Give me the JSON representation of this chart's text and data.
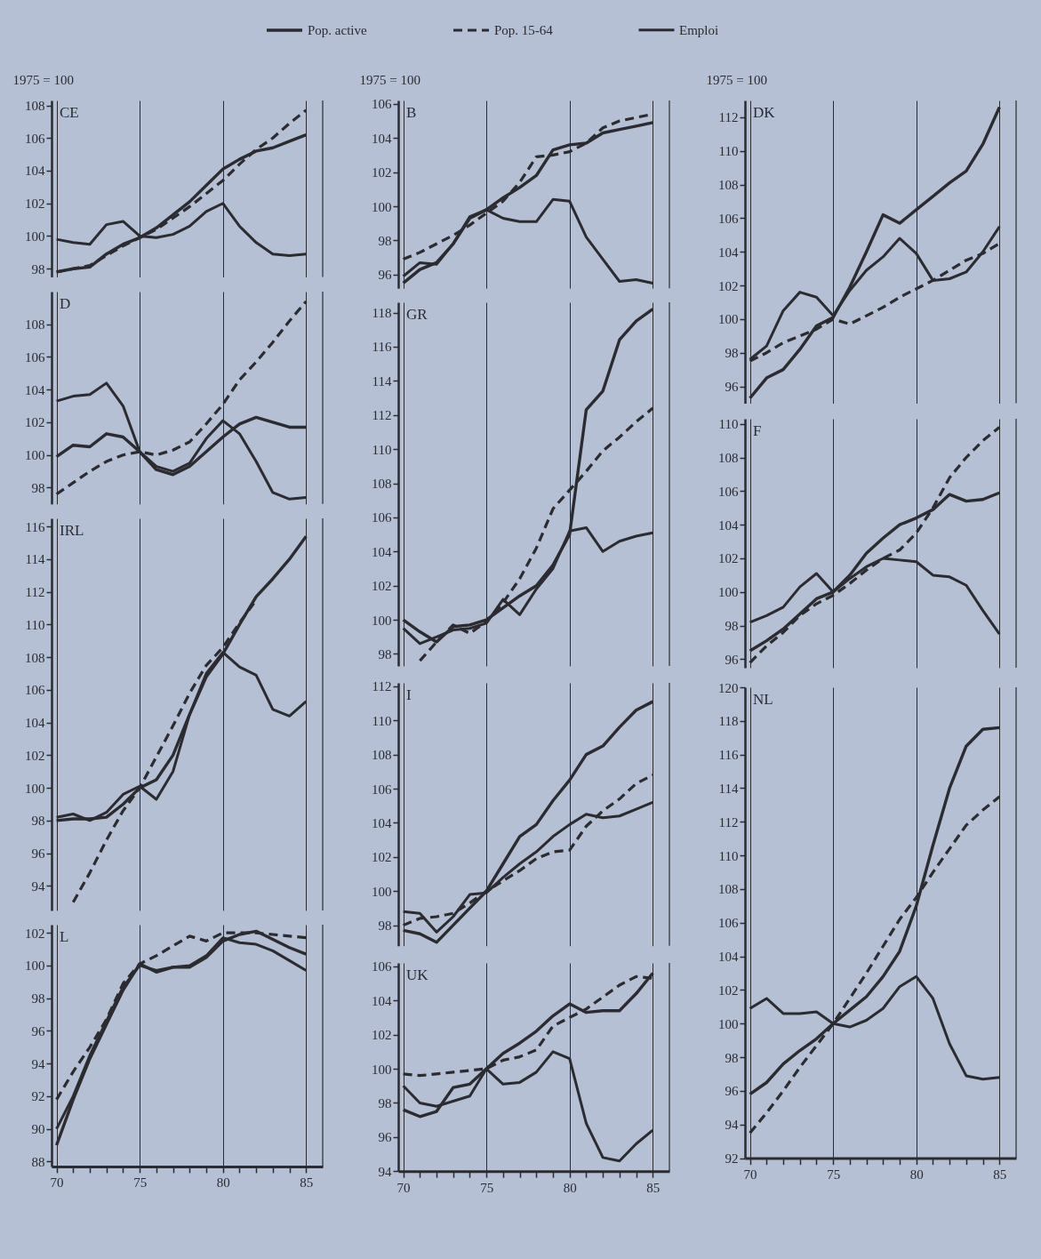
{
  "chart_data": [
    {
      "type": "line",
      "title": "CE",
      "ylabel": "1975 = 100",
      "x": [
        70,
        71,
        72,
        73,
        74,
        75,
        76,
        77,
        78,
        79,
        80,
        81,
        82,
        83,
        84,
        85
      ],
      "xlim": [
        69.7,
        86
      ],
      "xticks": [
        70,
        75,
        80,
        85
      ],
      "ylim": [
        97.5,
        108.3
      ],
      "yticks": [
        98,
        100,
        102,
        104,
        106,
        108
      ],
      "grid": "x",
      "tick_labels": "y",
      "legend": "top",
      "series": [
        {
          "name": "Pop. active",
          "color": "#2b2b30",
          "line_style": "solid",
          "values": [
            97.8,
            98.0,
            98.1,
            98.9,
            99.5,
            99.9,
            100.5,
            101.3,
            102.1,
            103.1,
            104.1,
            104.7,
            105.2,
            105.4,
            105.8,
            106.2
          ]
        },
        {
          "name": "Pop. 15-64",
          "color": "#2b2b30",
          "line_style": "dashed",
          "values": [
            97.8,
            98.0,
            98.2,
            98.8,
            99.4,
            99.9,
            100.4,
            101.1,
            101.8,
            102.6,
            103.4,
            104.4,
            105.3,
            106.0,
            106.9,
            107.7
          ]
        },
        {
          "name": "Emploi",
          "color": "#2b2b30",
          "line_style": "solid",
          "values": [
            99.8,
            99.6,
            99.5,
            100.7,
            100.9,
            100.0,
            99.9,
            100.1,
            100.6,
            101.5,
            102.0,
            100.6,
            99.6,
            98.9,
            98.8,
            98.9
          ]
        }
      ]
    },
    {
      "type": "line",
      "title": "D",
      "x": [
        70,
        71,
        72,
        73,
        74,
        75,
        76,
        77,
        78,
        79,
        80,
        81,
        82,
        83,
        84,
        85
      ],
      "xlim": [
        69.7,
        86
      ],
      "xticks": [
        70,
        75,
        80,
        85
      ],
      "ylim": [
        97,
        110
      ],
      "yticks": [
        98,
        100,
        102,
        104,
        106,
        108
      ],
      "grid": "x",
      "tick_labels": "y",
      "series": [
        {
          "name": "Pop. active",
          "color": "#2b2b30",
          "line_style": "solid",
          "values": [
            99.9,
            100.6,
            100.5,
            101.3,
            101.1,
            100.2,
            99.1,
            98.8,
            99.3,
            100.2,
            101.1,
            101.9,
            102.3,
            102.0,
            101.7,
            101.7
          ]
        },
        {
          "name": "Pop. 15-64",
          "color": "#2b2b30",
          "line_style": "dashed",
          "values": [
            97.6,
            98.3,
            99.0,
            99.6,
            100.0,
            100.2,
            100.0,
            100.3,
            100.8,
            101.9,
            103.1,
            104.6,
            105.7,
            106.9,
            108.2,
            109.4
          ]
        },
        {
          "name": "Emploi",
          "color": "#2b2b30",
          "line_style": "solid",
          "values": [
            103.3,
            103.6,
            103.7,
            104.4,
            103.0,
            100.2,
            99.3,
            99.0,
            99.5,
            101.0,
            102.1,
            101.3,
            99.6,
            97.7,
            97.3,
            97.4
          ]
        }
      ]
    },
    {
      "type": "line",
      "title": "IRL",
      "x": [
        70,
        71,
        72,
        73,
        74,
        75,
        76,
        77,
        78,
        79,
        80,
        81,
        82,
        83,
        84,
        85
      ],
      "xlim": [
        69.7,
        86
      ],
      "xticks": [
        70,
        75,
        80,
        85
      ],
      "ylim": [
        92.5,
        116.5
      ],
      "yticks": [
        94,
        96,
        98,
        100,
        102,
        104,
        106,
        108,
        110,
        112,
        114,
        116
      ],
      "grid": "x",
      "tick_labels": "y",
      "series": [
        {
          "name": "Pop. active",
          "color": "#2b2b30",
          "line_style": "solid",
          "values": [
            98.0,
            98.1,
            98.1,
            98.2,
            99.0,
            100.0,
            100.5,
            102.0,
            104.5,
            106.8,
            108.2,
            110.0,
            111.7,
            112.8,
            114.0,
            115.4
          ]
        },
        {
          "name": "Pop. 15-64",
          "color": "#2b2b30",
          "line_style": "dashed",
          "values": [
            null,
            93.0,
            94.8,
            96.8,
            98.6,
            100.0,
            101.9,
            103.8,
            105.8,
            107.5,
            108.6,
            110.1,
            111.5,
            null,
            null,
            null
          ]
        },
        {
          "name": "Emploi",
          "color": "#2b2b30",
          "line_style": "solid",
          "values": [
            98.2,
            98.4,
            98.0,
            98.5,
            99.6,
            100.1,
            99.3,
            101.0,
            104.5,
            107.0,
            108.3,
            107.4,
            106.9,
            104.8,
            104.4,
            105.3
          ]
        }
      ]
    },
    {
      "type": "line",
      "title": "L",
      "x": [
        70,
        71,
        72,
        73,
        74,
        75,
        76,
        77,
        78,
        79,
        80,
        81,
        82,
        83,
        84,
        85
      ],
      "xlim": [
        69.7,
        86
      ],
      "xticks": [
        70,
        {
          "value": 71,
          "label": null
        },
        {
          "value": 72,
          "label": null
        },
        {
          "value": 73,
          "label": null
        },
        {
          "value": 74,
          "label": null
        },
        75,
        {
          "value": 76,
          "label": null
        },
        {
          "value": 77,
          "label": null
        },
        {
          "value": 78,
          "label": null
        },
        {
          "value": 79,
          "label": null
        },
        80,
        {
          "value": 81,
          "label": null
        },
        {
          "value": 82,
          "label": null
        },
        {
          "value": 83,
          "label": null
        },
        {
          "value": 84,
          "label": null
        },
        85
      ],
      "ylim": [
        87.7,
        102.5
      ],
      "yticks": [
        88,
        90,
        92,
        94,
        96,
        98,
        100,
        102
      ],
      "grid": "x",
      "series": [
        {
          "name": "Pop. active",
          "color": "#2b2b30",
          "line_style": "solid",
          "values": [
            89.0,
            91.8,
            94.3,
            96.4,
            98.5,
            100.1,
            99.6,
            99.9,
            99.9,
            100.5,
            101.5,
            101.9,
            102.1,
            101.6,
            101.1,
            100.7
          ]
        },
        {
          "name": "Pop. 15-64",
          "color": "#2b2b30",
          "line_style": "dashed",
          "values": [
            91.8,
            93.5,
            95.0,
            96.7,
            98.9,
            100.1,
            100.6,
            101.2,
            101.8,
            101.5,
            102.0,
            102.0,
            102.0,
            101.9,
            101.8,
            101.7
          ]
        },
        {
          "name": "Emploi",
          "color": "#2b2b30",
          "line_style": "solid",
          "values": [
            90.0,
            92.0,
            94.5,
            96.6,
            98.7,
            100.0,
            99.7,
            99.9,
            100.0,
            100.6,
            101.7,
            101.4,
            101.3,
            100.9,
            100.3,
            99.7
          ]
        }
      ]
    },
    {
      "type": "line",
      "title": "B",
      "ylabel": "1975 = 100",
      "x": [
        70,
        71,
        72,
        73,
        74,
        75,
        76,
        77,
        78,
        79,
        80,
        81,
        82,
        83,
        84,
        85
      ],
      "xlim": [
        69.7,
        86
      ],
      "xticks": [
        70,
        75,
        80,
        85
      ],
      "ylim": [
        95.2,
        106.2
      ],
      "yticks": [
        96,
        98,
        100,
        102,
        104,
        106
      ],
      "grid": "x",
      "tick_labels": "y",
      "series": [
        {
          "name": "Pop. active",
          "color": "#2b2b30",
          "line_style": "solid",
          "values": [
            95.5,
            96.3,
            96.7,
            97.8,
            99.3,
            99.8,
            100.5,
            101.1,
            101.8,
            103.3,
            103.6,
            103.7,
            104.3,
            104.5,
            104.7,
            104.9
          ]
        },
        {
          "name": "Pop. 15-64",
          "color": "#2b2b30",
          "line_style": "dashed",
          "values": [
            96.9,
            97.3,
            97.8,
            98.3,
            98.9,
            99.6,
            100.3,
            101.4,
            102.9,
            103.0,
            103.2,
            103.7,
            104.6,
            105.0,
            105.2,
            105.4
          ]
        },
        {
          "name": "Emploi",
          "color": "#2b2b30",
          "line_style": "solid",
          "values": [
            95.9,
            96.7,
            96.6,
            97.8,
            99.4,
            99.8,
            99.3,
            99.1,
            99.1,
            100.4,
            100.3,
            98.2,
            96.9,
            95.6,
            95.7,
            95.5
          ]
        }
      ]
    },
    {
      "type": "line",
      "title": "GR",
      "x": [
        70,
        71,
        72,
        73,
        74,
        75,
        76,
        77,
        78,
        79,
        80,
        81,
        82,
        83,
        84,
        85
      ],
      "xlim": [
        69.7,
        86
      ],
      "xticks": [
        70,
        75,
        80,
        85
      ],
      "ylim": [
        97.3,
        118.6
      ],
      "yticks": [
        98,
        100,
        102,
        104,
        106,
        108,
        110,
        112,
        114,
        116,
        118
      ],
      "grid": "x",
      "tick_labels": "y",
      "series": [
        {
          "name": "Pop. active",
          "color": "#2b2b30",
          "line_style": "solid",
          "values": [
            100.0,
            99.3,
            98.7,
            99.6,
            99.7,
            100.0,
            100.7,
            101.4,
            102.0,
            103.2,
            105.0,
            112.3,
            113.4,
            116.4,
            117.5,
            118.2
          ]
        },
        {
          "name": "Pop. 15-64",
          "color": "#2b2b30",
          "line_style": "dashed",
          "values": [
            null,
            97.6,
            98.7,
            99.7,
            99.2,
            99.9,
            101.0,
            102.4,
            104.2,
            106.5,
            107.6,
            108.7,
            109.9,
            110.7,
            111.6,
            112.4
          ]
        },
        {
          "name": "Emploi",
          "color": "#2b2b30",
          "line_style": "solid",
          "values": [
            99.5,
            98.6,
            99.0,
            99.4,
            99.5,
            99.8,
            101.2,
            100.3,
            101.8,
            103.0,
            105.2,
            105.4,
            104.0,
            104.6,
            104.9,
            105.1
          ]
        }
      ]
    },
    {
      "type": "line",
      "title": "I",
      "x": [
        70,
        71,
        72,
        73,
        74,
        75,
        76,
        77,
        78,
        79,
        80,
        81,
        82,
        83,
        84,
        85
      ],
      "xlim": [
        69.7,
        86
      ],
      "xticks": [
        70,
        75,
        80,
        85
      ],
      "ylim": [
        96.8,
        112.2
      ],
      "yticks": [
        98,
        100,
        102,
        104,
        106,
        108,
        110,
        112
      ],
      "grid": "x",
      "tick_labels": "y",
      "series": [
        {
          "name": "Pop. active",
          "color": "#2b2b30",
          "line_style": "solid",
          "values": [
            97.7,
            97.5,
            97.0,
            98.0,
            99.0,
            100.0,
            101.6,
            103.2,
            103.9,
            105.3,
            106.5,
            108.0,
            108.5,
            109.6,
            110.6,
            111.1
          ]
        },
        {
          "name": "Pop. 15-64",
          "color": "#2b2b30",
          "line_style": "dashed",
          "values": [
            98.0,
            98.4,
            98.5,
            98.7,
            99.3,
            100.0,
            100.6,
            101.2,
            101.9,
            102.3,
            102.4,
            103.8,
            104.7,
            105.4,
            106.3,
            106.8
          ]
        },
        {
          "name": "Emploi",
          "color": "#2b2b30",
          "line_style": "solid",
          "values": [
            98.8,
            98.7,
            97.6,
            98.5,
            99.8,
            99.9,
            100.8,
            101.6,
            102.3,
            103.2,
            103.9,
            104.5,
            104.3,
            104.4,
            104.8,
            105.2
          ]
        }
      ]
    },
    {
      "type": "line",
      "title": "UK",
      "x": [
        70,
        71,
        72,
        73,
        74,
        75,
        76,
        77,
        78,
        79,
        80,
        81,
        82,
        83,
        84,
        85
      ],
      "xlim": [
        69.7,
        86
      ],
      "xticks": [
        70,
        {
          "value": 71,
          "label": null
        },
        {
          "value": 72,
          "label": null
        },
        {
          "value": 73,
          "label": null
        },
        {
          "value": 74,
          "label": null
        },
        75,
        {
          "value": 76,
          "label": null
        },
        {
          "value": 77,
          "label": null
        },
        {
          "value": 78,
          "label": null
        },
        {
          "value": 79,
          "label": null
        },
        80,
        {
          "value": 81,
          "label": null
        },
        {
          "value": 82,
          "label": null
        },
        {
          "value": 83,
          "label": null
        },
        {
          "value": 84,
          "label": null
        },
        85
      ],
      "ylim": [
        94,
        106.2
      ],
      "yticks": [
        94,
        96,
        98,
        100,
        102,
        104,
        106
      ],
      "grid": "x",
      "series": [
        {
          "name": "Pop. active",
          "color": "#2b2b30",
          "line_style": "solid",
          "values": [
            97.6,
            97.2,
            97.5,
            98.9,
            99.1,
            100.0,
            100.9,
            101.5,
            102.2,
            103.1,
            103.8,
            103.3,
            103.4,
            103.4,
            104.4,
            105.6
          ]
        },
        {
          "name": "Pop. 15-64",
          "color": "#2b2b30",
          "line_style": "dashed",
          "values": [
            99.7,
            99.6,
            99.7,
            99.8,
            99.9,
            100.0,
            100.5,
            100.7,
            101.1,
            102.5,
            103.0,
            103.5,
            104.2,
            104.9,
            105.4,
            105.3
          ]
        },
        {
          "name": "Emploi",
          "color": "#2b2b30",
          "line_style": "solid",
          "values": [
            99.0,
            98.0,
            97.8,
            98.1,
            98.4,
            100.0,
            99.1,
            99.2,
            99.8,
            101.0,
            100.6,
            96.8,
            94.8,
            94.6,
            95.6,
            96.4
          ]
        }
      ]
    },
    {
      "type": "line",
      "title": "DK",
      "ylabel": "1975 = 100",
      "x": [
        70,
        71,
        72,
        73,
        74,
        75,
        76,
        77,
        78,
        79,
        80,
        81,
        82,
        83,
        84,
        85
      ],
      "xlim": [
        69.7,
        86
      ],
      "xticks": [
        70,
        75,
        80,
        85
      ],
      "ylim": [
        95,
        113
      ],
      "yticks": [
        96,
        98,
        100,
        102,
        104,
        106,
        108,
        110,
        112
      ],
      "grid": "x",
      "tick_labels": "y",
      "series": [
        {
          "name": "Pop. active",
          "color": "#2b2b30",
          "line_style": "solid",
          "values": [
            95.3,
            96.5,
            97.0,
            98.2,
            99.6,
            100.1,
            101.9,
            104.0,
            106.2,
            105.7,
            106.5,
            107.3,
            108.1,
            108.8,
            110.4,
            112.6
          ]
        },
        {
          "name": "Pop. 15-64",
          "color": "#2b2b30",
          "line_style": "dashed",
          "values": [
            97.5,
            98.0,
            98.6,
            99.0,
            99.4,
            100.0,
            99.7,
            100.2,
            100.7,
            101.3,
            101.8,
            102.3,
            102.9,
            103.5,
            103.9,
            104.5
          ]
        },
        {
          "name": "Emploi",
          "color": "#2b2b30",
          "line_style": "solid",
          "values": [
            97.6,
            98.4,
            100.5,
            101.6,
            101.3,
            100.2,
            101.7,
            102.9,
            103.7,
            104.8,
            103.9,
            102.3,
            102.4,
            102.8,
            104.0,
            105.5
          ]
        }
      ]
    },
    {
      "type": "line",
      "title": "F",
      "x": [
        70,
        71,
        72,
        73,
        74,
        75,
        76,
        77,
        78,
        79,
        80,
        81,
        82,
        83,
        84,
        85
      ],
      "xlim": [
        69.7,
        86
      ],
      "xticks": [
        70,
        75,
        80,
        85
      ],
      "ylim": [
        95.5,
        110.3
      ],
      "yticks": [
        96,
        98,
        100,
        102,
        104,
        106,
        108,
        110
      ],
      "grid": "x",
      "tick_labels": "y",
      "series": [
        {
          "name": "Pop. active",
          "color": "#2b2b30",
          "line_style": "solid",
          "values": [
            96.5,
            97.1,
            97.8,
            98.7,
            99.6,
            100.0,
            101.0,
            102.3,
            103.2,
            104.0,
            104.4,
            104.9,
            105.8,
            105.4,
            105.5,
            105.9
          ]
        },
        {
          "name": "Pop. 15-64",
          "color": "#2b2b30",
          "line_style": "dashed",
          "values": [
            95.8,
            96.8,
            97.6,
            98.6,
            99.3,
            99.8,
            100.5,
            101.3,
            102.0,
            102.5,
            103.5,
            105.0,
            106.8,
            108.0,
            109.0,
            109.8
          ]
        },
        {
          "name": "Emploi",
          "color": "#2b2b30",
          "line_style": "solid",
          "values": [
            98.2,
            98.6,
            99.1,
            100.3,
            101.1,
            100.0,
            100.8,
            101.5,
            102.0,
            101.9,
            101.8,
            101.0,
            100.9,
            100.4,
            98.9,
            97.5
          ]
        }
      ]
    },
    {
      "type": "line",
      "title": "NL",
      "x": [
        70,
        71,
        72,
        73,
        74,
        75,
        76,
        77,
        78,
        79,
        80,
        81,
        82,
        83,
        84,
        85
      ],
      "xlim": [
        69.7,
        86
      ],
      "xticks": [
        70,
        {
          "value": 71,
          "label": null
        },
        {
          "value": 72,
          "label": null
        },
        {
          "value": 73,
          "label": null
        },
        {
          "value": 74,
          "label": null
        },
        75,
        {
          "value": 76,
          "label": null
        },
        {
          "value": 77,
          "label": null
        },
        {
          "value": 78,
          "label": null
        },
        {
          "value": 79,
          "label": null
        },
        80,
        {
          "value": 81,
          "label": null
        },
        {
          "value": 82,
          "label": null
        },
        {
          "value": 83,
          "label": null
        },
        {
          "value": 84,
          "label": null
        },
        85
      ],
      "ylim": [
        92,
        120
      ],
      "yticks": [
        92,
        94,
        96,
        98,
        100,
        102,
        104,
        106,
        108,
        110,
        112,
        114,
        116,
        118,
        120
      ],
      "grid": "x",
      "series": [
        {
          "name": "Pop. active",
          "color": "#2b2b30",
          "line_style": "solid",
          "values": [
            95.8,
            96.5,
            97.6,
            98.4,
            99.1,
            100.0,
            100.8,
            101.6,
            102.8,
            104.3,
            107.0,
            110.6,
            114.0,
            116.5,
            117.5,
            117.6
          ]
        },
        {
          "name": "Pop. 15-64",
          "color": "#2b2b30",
          "line_style": "dashed",
          "values": [
            93.5,
            94.7,
            96.0,
            97.4,
            98.7,
            100.0,
            101.5,
            103.0,
            104.6,
            106.2,
            107.5,
            109.0,
            110.4,
            111.8,
            112.7,
            113.5
          ]
        },
        {
          "name": "Emploi",
          "color": "#2b2b30",
          "line_style": "solid",
          "values": [
            100.9,
            101.5,
            100.6,
            100.6,
            100.7,
            100.0,
            99.8,
            100.2,
            100.9,
            102.2,
            102.8,
            101.5,
            98.8,
            96.9,
            96.7,
            96.8
          ]
        }
      ]
    }
  ]
}
